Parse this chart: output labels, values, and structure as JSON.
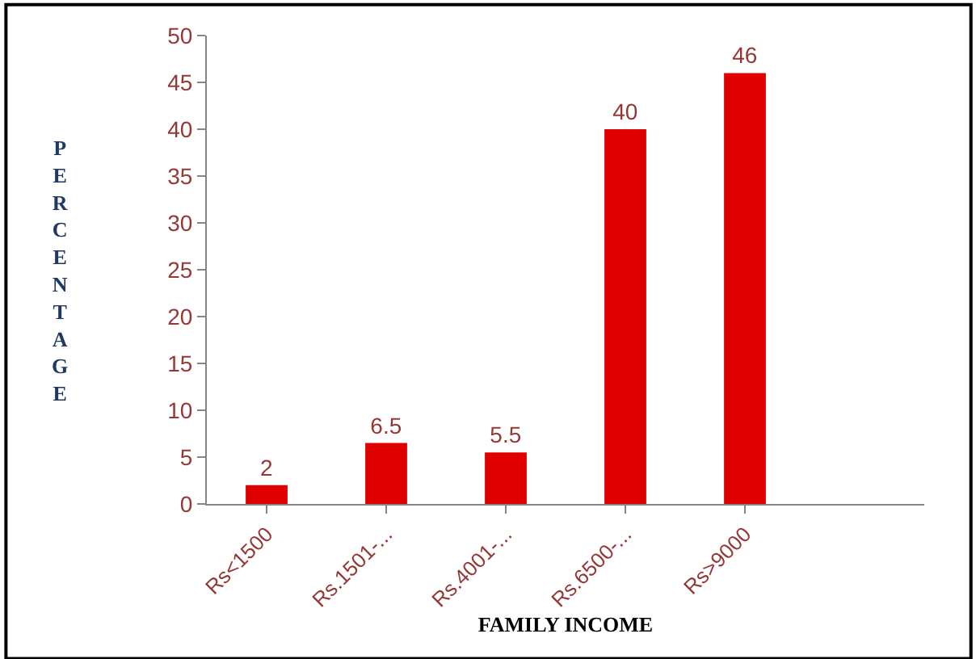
{
  "chart_data": {
    "type": "bar",
    "xlabel": "FAMILY INCOME",
    "ylabel": "PERCENTAGE",
    "categories": [
      "Rs<1500",
      "Rs.1501-...",
      "Rs.4001-...",
      "Rs.6500-...",
      "Rs>9000",
      null
    ],
    "values": [
      2,
      6.5,
      5.5,
      40,
      46,
      null
    ],
    "color": "#e00000",
    "ylim": [
      0,
      50
    ],
    "yticks": [
      0,
      5,
      10,
      15,
      20,
      25,
      30,
      35,
      40,
      45,
      50
    ],
    "data_labels": true
  }
}
